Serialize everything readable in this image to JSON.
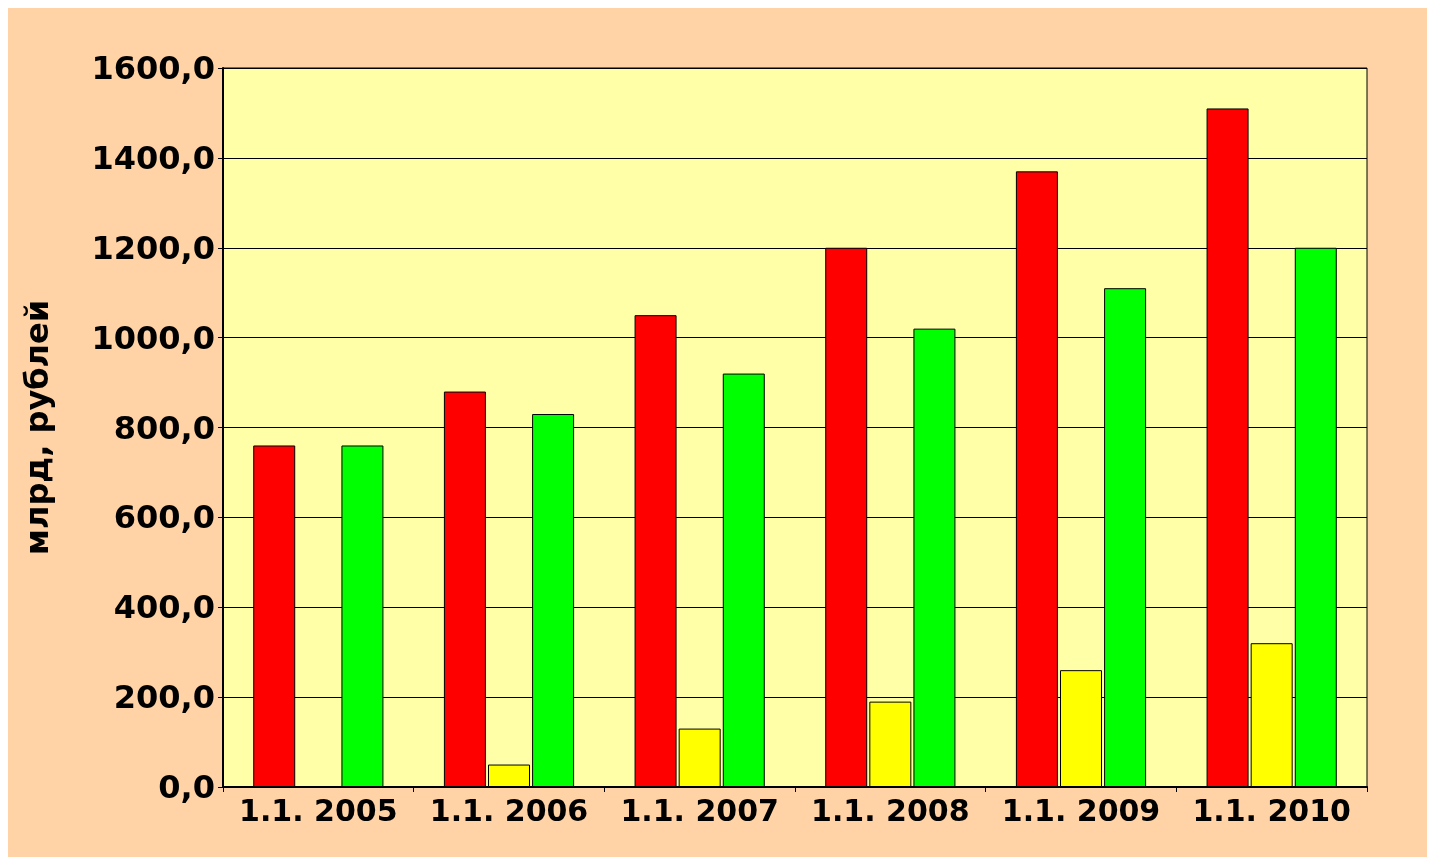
{
  "chart_data": {
    "type": "bar",
    "ylabel": "млрд, рублей",
    "categories": [
      "1.1. 2005",
      "1.1. 2006",
      "1.1. 2007",
      "1.1. 2008",
      "1.1. 2009",
      "1.1. 2010"
    ],
    "series": [
      {
        "color": "#ff0000",
        "values": [
          760,
          880,
          1050,
          1200,
          1370,
          1510
        ]
      },
      {
        "color": "#ffff00",
        "values": [
          null,
          50,
          130,
          190,
          260,
          320
        ]
      },
      {
        "color": "#00ff00",
        "values": [
          760,
          830,
          920,
          1020,
          1110,
          1200
        ]
      }
    ],
    "ylim": [
      0,
      1600
    ],
    "yticks": [
      {
        "value": 0,
        "label": "0,0"
      },
      {
        "value": 200,
        "label": "200,0"
      },
      {
        "value": 400,
        "label": "400,0"
      },
      {
        "value": 600,
        "label": "600,0"
      },
      {
        "value": 800,
        "label": "800,0"
      },
      {
        "value": 1000,
        "label": "1000,0"
      },
      {
        "value": 1200,
        "label": "1200,0"
      },
      {
        "value": 1400,
        "label": "1400,0"
      },
      {
        "value": 1600,
        "label": "1600,0"
      }
    ],
    "grid": "y"
  }
}
